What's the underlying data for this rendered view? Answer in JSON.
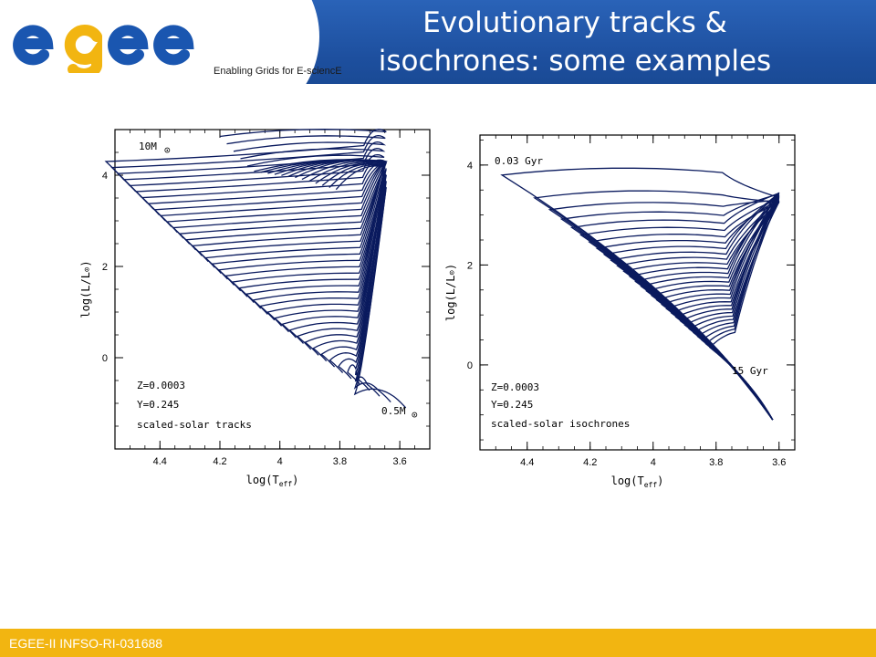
{
  "header": {
    "logo_text": "egee",
    "tagline": "Enabling Grids for E-sciencE",
    "title_line1": "Evolutionary tracks &",
    "title_line2": "isochrones: some examples"
  },
  "footer": {
    "text": "EGEE-II INFSO-RI-031688"
  },
  "colors": {
    "header_blue": "#1f53a4",
    "footer_gold": "#f2b511",
    "curve_navy": "#0a1a5e",
    "logo_blue": "#1a56b0",
    "logo_yellow": "#f2b511"
  },
  "chart_data": [
    {
      "type": "line",
      "xlabel": "log(T",
      "xlabel_sub": "eff",
      "xlabel_close": ")",
      "ylabel": "log(L/L",
      "ylabel_close": ")",
      "xlim": [
        4.55,
        3.5
      ],
      "ylim": [
        -2.0,
        5.0
      ],
      "x_ticks": [
        "4.4",
        "4.2",
        "4",
        "3.8",
        "3.6"
      ],
      "x_tick_values": [
        4.4,
        4.2,
        4.0,
        3.8,
        3.6
      ],
      "y_ticks": [
        "0",
        "2",
        "4"
      ],
      "y_tick_values": [
        0,
        2,
        4
      ],
      "annotations": {
        "top_label": "10M",
        "bottom_label": "0.5M",
        "z": "Z=0.0003",
        "y": "Y=0.245",
        "desc": "scaled-solar tracks"
      },
      "tracks": {
        "count": 40,
        "zams_start": {
          "logT": 3.58,
          "logL": -1.1
        },
        "zams_end": {
          "logT": 4.52,
          "logL": 3.9
        },
        "rgb_tip": {
          "logT": 3.65,
          "logL": 4.3
        }
      }
    },
    {
      "type": "line",
      "xlabel": "log(T",
      "xlabel_sub": "eff",
      "xlabel_close": ")",
      "ylabel": "log(L/L",
      "ylabel_close": ")",
      "xlim": [
        4.55,
        3.55
      ],
      "ylim": [
        -1.7,
        4.6
      ],
      "x_ticks": [
        "4.4",
        "4.2",
        "4",
        "3.8",
        "3.6"
      ],
      "x_tick_values": [
        4.4,
        4.2,
        4.0,
        3.8,
        3.6
      ],
      "y_ticks": [
        "0",
        "2",
        "4"
      ],
      "y_tick_values": [
        0,
        2,
        4
      ],
      "annotations": {
        "top_label": "0.03 Gyr",
        "bottom_label": "15 Gyr",
        "z": "Z=0.0003",
        "y": "Y=0.245",
        "desc": "scaled-solar isochrones"
      },
      "isochrones": {
        "count": 30,
        "age_range_gyr": [
          0.03,
          15
        ],
        "ms_bottom": {
          "logT": 3.62,
          "logL": -1.1
        },
        "young_turnoff": {
          "logT": 4.48,
          "logL": 3.8
        },
        "rgb_tip": {
          "logT": 3.6,
          "logL": 3.35
        }
      }
    }
  ]
}
